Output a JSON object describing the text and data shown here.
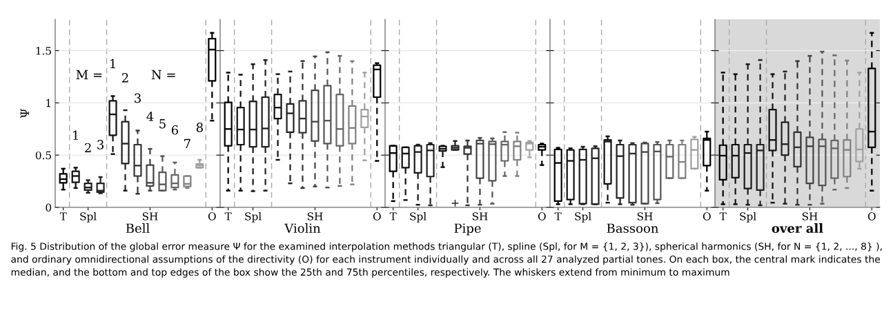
{
  "chart_data": [
    {
      "type": "box",
      "categories": [
        "T",
        null,
        "Spl",
        null,
        null,
        null,
        null,
        "SH",
        null,
        null,
        null,
        null,
        "O"
      ],
      "xlabel": "Bell",
      "ylabel": "Ψ",
      "ylim": [
        0,
        1.8
      ],
      "yticks": [
        0,
        0.5,
        1,
        1.5
      ],
      "grid": "y",
      "colors": [
        "#000000",
        "#111111",
        "#1a1a1a",
        "#222222",
        "#111111",
        "#222222",
        "#333333",
        "#444444",
        "#555555",
        "#666666",
        "#808080",
        "#a0a0a0",
        "#000000"
      ],
      "boxes": [
        {
          "low": 0.17,
          "q1": 0.235,
          "median": 0.27,
          "q3": 0.32,
          "high": 0.37
        },
        {
          "low": 0.185,
          "q1": 0.24,
          "median": 0.3,
          "q3": 0.345,
          "high": 0.38
        },
        {
          "low": 0.14,
          "q1": 0.165,
          "median": 0.19,
          "q3": 0.23,
          "high": 0.26
        },
        {
          "low": 0.135,
          "q1": 0.145,
          "median": 0.16,
          "q3": 0.23,
          "high": 0.29
        },
        {
          "low": 0.51,
          "q1": 0.69,
          "median": 0.89,
          "q3": 1.02,
          "high": 1.065
        },
        {
          "low": 0.16,
          "q1": 0.42,
          "median": 0.61,
          "q3": 0.82,
          "high": 0.93
        },
        {
          "low": 0.13,
          "q1": 0.3,
          "median": 0.4,
          "q3": 0.6,
          "high": 0.735
        },
        {
          "low": 0.16,
          "q1": 0.205,
          "median": 0.235,
          "q3": 0.405,
          "high": 0.56
        },
        {
          "low": 0.16,
          "q1": 0.16,
          "median": 0.22,
          "q3": 0.335,
          "high": 0.49
        },
        {
          "low": 0.17,
          "q1": 0.19,
          "median": 0.23,
          "q3": 0.31,
          "high": 0.43
        },
        {
          "low": 0.185,
          "q1": 0.2,
          "median": 0.225,
          "q3": 0.3,
          "high": 0.3
        },
        {
          "low": 0.38,
          "q1": 0.38,
          "median": 0.4,
          "q3": 0.415,
          "high": 0.455
        },
        {
          "low": 0.83,
          "q1": 1.21,
          "median": 1.51,
          "q3": 1.615,
          "high": 1.67
        }
      ],
      "annotations": [
        "M =",
        "1",
        "2",
        "3",
        "N =",
        "1",
        "2",
        "3",
        "4",
        "5",
        "6",
        "7",
        "8"
      ]
    },
    {
      "type": "box",
      "categories": [
        "T",
        null,
        "Spl",
        null,
        null,
        null,
        null,
        "SH",
        null,
        null,
        null,
        null,
        "O"
      ],
      "xlabel": "Violin",
      "ylim": [
        0,
        1.8
      ],
      "yticks": [
        0,
        0.5,
        1,
        1.5
      ],
      "grid": "y",
      "tick_labels": "x",
      "colors": [
        "#000000",
        "#111111",
        "#1a1a1a",
        "#222222",
        "#111111",
        "#222222",
        "#333333",
        "#444444",
        "#555555",
        "#666666",
        "#808080",
        "#a0a0a0",
        "#000000"
      ],
      "boxes": [
        {
          "low": 0.16,
          "q1": 0.59,
          "median": 0.75,
          "q3": 1.005,
          "high": 1.29
        },
        {
          "low": 0.16,
          "q1": 0.6,
          "median": 0.745,
          "q3": 0.955,
          "high": 1.27
        },
        {
          "low": 0.155,
          "q1": 0.58,
          "median": 0.745,
          "q3": 1.015,
          "high": 1.37
        },
        {
          "low": 0.16,
          "q1": 0.58,
          "median": 0.755,
          "q3": 1.055,
          "high": 1.41
        },
        {
          "low": 0.455,
          "q1": 0.85,
          "median": 0.955,
          "q3": 1.08,
          "high": 1.275
        },
        {
          "low": 0.23,
          "q1": 0.72,
          "median": 0.9,
          "q3": 0.99,
          "high": 1.3
        },
        {
          "low": 0.185,
          "q1": 0.715,
          "median": 0.85,
          "q3": 1.02,
          "high": 1.4
        },
        {
          "low": 0.2,
          "q1": 0.635,
          "median": 0.82,
          "q3": 1.12,
          "high": 1.445
        },
        {
          "low": 0.19,
          "q1": 0.61,
          "median": 0.83,
          "q3": 1.165,
          "high": 1.485
        },
        {
          "low": 0.205,
          "q1": 0.59,
          "median": 0.75,
          "q3": 1.08,
          "high": 1.45
        },
        {
          "low": 0.22,
          "q1": 0.61,
          "median": 0.76,
          "q3": 0.97,
          "high": 1.4
        },
        {
          "low": 0.45,
          "q1": 0.765,
          "median": 0.87,
          "q3": 0.935,
          "high": 1.29
        },
        {
          "low": 0.445,
          "q1": 1.055,
          "median": 1.32,
          "q3": 1.36,
          "high": 1.38
        }
      ]
    },
    {
      "type": "box",
      "categories": [
        "T",
        null,
        "Spl",
        null,
        null,
        null,
        null,
        "SH",
        null,
        null,
        null,
        null,
        "O"
      ],
      "xlabel": "Pipe",
      "ylim": [
        0,
        1.8
      ],
      "yticks": [
        0,
        0.5,
        1,
        1.5
      ],
      "grid": "y",
      "tick_labels": "x",
      "colors": [
        "#000000",
        "#111111",
        "#1a1a1a",
        "#222222",
        "#111111",
        "#222222",
        "#333333",
        "#444444",
        "#555555",
        "#666666",
        "#808080",
        "#a0a0a0",
        "#000000"
      ],
      "boxes": [
        {
          "low": 0.06,
          "q1": 0.345,
          "median": 0.52,
          "q3": 0.59,
          "high": 0.59
        },
        {
          "low": 0.07,
          "q1": 0.38,
          "median": 0.515,
          "q3": 0.575,
          "high": 0.575
        },
        {
          "low": 0.025,
          "q1": 0.33,
          "median": 0.53,
          "q3": 0.59,
          "high": 0.6
        },
        {
          "low": 0.02,
          "q1": 0.295,
          "median": 0.545,
          "q3": 0.6,
          "high": 0.615
        },
        {
          "low": 0.385,
          "q1": 0.54,
          "median": 0.56,
          "q3": 0.585,
          "high": 0.59
        },
        {
          "low": 0.55,
          "q1": 0.55,
          "median": 0.57,
          "q3": 0.59,
          "high": 0.635,
          "outliers": [
            0.04
          ]
        },
        {
          "low": 0.02,
          "q1": 0.51,
          "median": 0.57,
          "q3": 0.585,
          "high": 0.64
        },
        {
          "low": 0.025,
          "q1": 0.28,
          "median": 0.61,
          "q3": 0.64,
          "high": 0.665
        },
        {
          "low": 0.035,
          "q1": 0.255,
          "median": 0.605,
          "q3": 0.63,
          "high": 0.66
        },
        {
          "low": 0.3,
          "q1": 0.445,
          "median": 0.6,
          "q3": 0.63,
          "high": 0.72
        },
        {
          "low": 0.3,
          "q1": 0.455,
          "median": 0.585,
          "q3": 0.63,
          "high": 0.715
        },
        {
          "low": 0.48,
          "q1": 0.55,
          "median": 0.61,
          "q3": 0.62,
          "high": 0.635
        },
        {
          "low": 0.405,
          "q1": 0.55,
          "median": 0.58,
          "q3": 0.6,
          "high": 0.61
        }
      ]
    },
    {
      "type": "box",
      "categories": [
        "T",
        null,
        "Spl",
        null,
        null,
        null,
        null,
        "SH",
        null,
        null,
        null,
        null,
        "O"
      ],
      "xlabel": "Bassoon",
      "ylim": [
        0,
        1.8
      ],
      "yticks": [
        0,
        0.5,
        1,
        1.5
      ],
      "grid": "y",
      "tick_labels": "x",
      "colors": [
        "#000000",
        "#111111",
        "#1a1a1a",
        "#222222",
        "#111111",
        "#222222",
        "#333333",
        "#444444",
        "#555555",
        "#666666",
        "#808080",
        "#a0a0a0",
        "#000000"
      ],
      "boxes": [
        {
          "low": 0.03,
          "q1": 0.06,
          "median": 0.425,
          "q3": 0.555,
          "high": 0.57
        },
        {
          "low": 0.03,
          "q1": 0.075,
          "median": 0.445,
          "q3": 0.55,
          "high": 0.565
        },
        {
          "low": 0.03,
          "q1": 0.035,
          "median": 0.455,
          "q3": 0.555,
          "high": 0.58
        },
        {
          "low": 0.03,
          "q1": 0.03,
          "median": 0.47,
          "q3": 0.565,
          "high": 0.585
        },
        {
          "low": 0.045,
          "q1": 0.225,
          "median": 0.63,
          "q3": 0.645,
          "high": 0.68
        },
        {
          "low": 0.03,
          "q1": 0.09,
          "median": 0.49,
          "q3": 0.6,
          "high": 0.64
        },
        {
          "low": 0.025,
          "q1": 0.045,
          "median": 0.515,
          "q3": 0.6,
          "high": 0.615
        },
        {
          "low": 0.035,
          "q1": 0.035,
          "median": 0.53,
          "q3": 0.61,
          "high": 0.62
        },
        {
          "low": 0.04,
          "q1": 0.075,
          "median": 0.535,
          "q3": 0.6,
          "high": 0.625
        },
        {
          "low": 0.28,
          "q1": 0.28,
          "median": 0.485,
          "q3": 0.6,
          "high": 0.64
        },
        {
          "low": 0.28,
          "q1": 0.28,
          "median": 0.435,
          "q3": 0.6,
          "high": 0.64
        },
        {
          "low": 0.37,
          "q1": 0.37,
          "median": 0.55,
          "q3": 0.65,
          "high": 0.675
        },
        {
          "low": 0.16,
          "q1": 0.4,
          "median": 0.645,
          "q3": 0.66,
          "high": 0.725
        }
      ]
    },
    {
      "type": "box",
      "categories": [
        "T",
        null,
        "Spl",
        null,
        null,
        null,
        null,
        "SH",
        null,
        null,
        null,
        null,
        "O"
      ],
      "xlabel": "over all",
      "ylim": [
        0,
        1.8
      ],
      "yticks": [
        0,
        0.5,
        1,
        1.5
      ],
      "grid": "y",
      "tick_labels": "x",
      "colors": [
        "#000000",
        "#111111",
        "#1a1a1a",
        "#222222",
        "#111111",
        "#222222",
        "#333333",
        "#444444",
        "#555555",
        "#666666",
        "#808080",
        "#a0a0a0",
        "#000000"
      ],
      "boxes": [
        {
          "low": 0.03,
          "q1": 0.265,
          "median": 0.495,
          "q3": 0.595,
          "high": 1.29
        },
        {
          "low": 0.03,
          "q1": 0.285,
          "median": 0.495,
          "q3": 0.6,
          "high": 1.275
        },
        {
          "low": 0.025,
          "q1": 0.18,
          "median": 0.52,
          "q3": 0.6,
          "high": 1.37
        },
        {
          "low": 0.02,
          "q1": 0.165,
          "median": 0.545,
          "q3": 0.6,
          "high": 1.41
        },
        {
          "low": 0.045,
          "q1": 0.545,
          "median": 0.645,
          "q3": 0.935,
          "high": 1.275
        },
        {
          "low": 0.035,
          "q1": 0.5,
          "median": 0.605,
          "q3": 0.815,
          "high": 1.3
        },
        {
          "low": 0.025,
          "q1": 0.39,
          "median": 0.575,
          "q3": 0.72,
          "high": 1.4
        },
        {
          "low": 0.025,
          "q1": 0.23,
          "median": 0.585,
          "q3": 0.67,
          "high": 1.45
        },
        {
          "low": 0.035,
          "q1": 0.21,
          "median": 0.585,
          "q3": 0.65,
          "high": 1.49
        },
        {
          "low": 0.17,
          "q1": 0.28,
          "median": 0.565,
          "q3": 0.64,
          "high": 1.455
        },
        {
          "low": 0.185,
          "q1": 0.295,
          "median": 0.55,
          "q3": 0.645,
          "high": 1.405
        },
        {
          "low": 0.37,
          "q1": 0.44,
          "median": 0.555,
          "q3": 0.75,
          "high": 1.29
        },
        {
          "low": 0.16,
          "q1": 0.575,
          "median": 0.725,
          "q3": 1.33,
          "high": 1.67
        }
      ],
      "annotations": [
        "Fig. 5 Distribution of the global error measure Ψ for the examined interpolation methods triangular (T), spline (Spl, for M = {1, 2, 3}), spherical harmonics (SH, for N = {1, 2, ..., 8} ), and ordinary omnidirectional assumptions of the directivity (O) for each instrument individually and across all 27 analyzed partial tones. On each box, the central mark indicates the median, and the bottom and top edges of the box show the 25th and 75th percentiles, respectively. The whiskers extend from minimum to maximum"
      ]
    }
  ]
}
